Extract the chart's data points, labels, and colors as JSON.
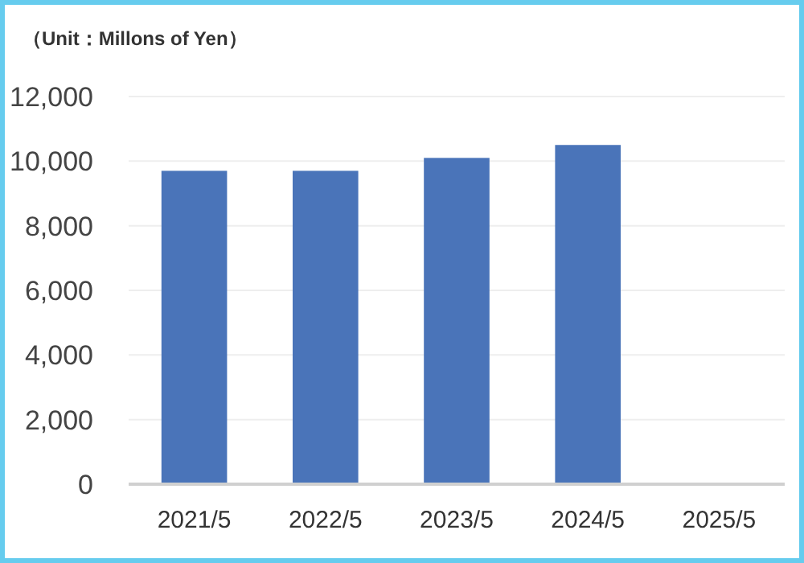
{
  "chart_data": {
    "type": "bar",
    "title": "（Unit：Millons of Yen）",
    "categories": [
      "2021/5",
      "2022/5",
      "2023/5",
      "2024/5",
      "2025/5"
    ],
    "values": [
      9700,
      9700,
      10100,
      10500,
      null
    ],
    "color": "#4a74b9",
    "ylim": [
      0,
      12000
    ],
    "yticks": [
      {
        "value": 0,
        "label": "0"
      },
      {
        "value": 2000,
        "label": "2,000"
      },
      {
        "value": 4000,
        "label": "4,000"
      },
      {
        "value": 6000,
        "label": "6,000"
      },
      {
        "value": 8000,
        "label": "8,000"
      },
      {
        "value": 10000,
        "label": "10,000"
      },
      {
        "value": 12000,
        "label": "12,000"
      }
    ],
    "grid": "y"
  }
}
